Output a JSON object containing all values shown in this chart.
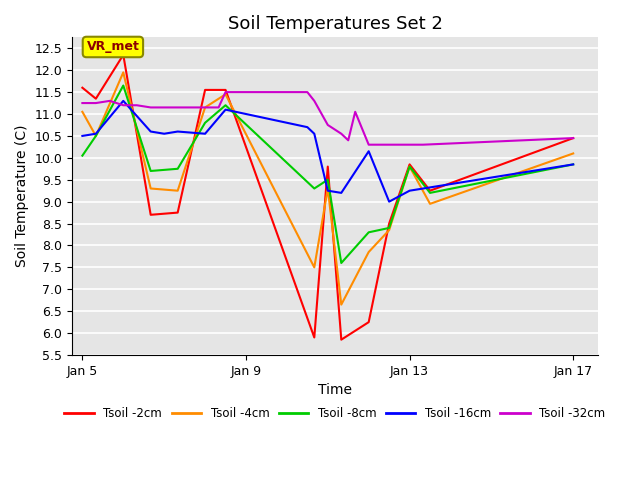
{
  "title": "Soil Temperatures Set 2",
  "xlabel": "Time",
  "ylabel": "Soil Temperature (C)",
  "ylim": [
    5.5,
    12.75
  ],
  "background_color": "#e5e5e5",
  "annotation_label": "VR_met",
  "annotation_box_color": "#ffff00",
  "annotation_text_color": "#8b0000",
  "series": {
    "Tsoil -2cm": {
      "color": "#ff0000",
      "x": [
        5.0,
        5.33,
        6.0,
        6.67,
        7.33,
        8.0,
        8.5,
        10.67,
        11.0,
        11.33,
        12.0,
        12.5,
        13.0,
        13.5,
        17.0
      ],
      "y": [
        11.6,
        11.35,
        12.35,
        8.7,
        8.75,
        11.55,
        11.55,
        5.9,
        9.8,
        5.85,
        6.25,
        8.5,
        9.85,
        9.25,
        10.45
      ]
    },
    "Tsoil -4cm": {
      "color": "#ff8c00",
      "x": [
        5.0,
        5.33,
        6.0,
        6.67,
        7.33,
        8.0,
        8.5,
        10.67,
        11.0,
        11.33,
        12.0,
        12.5,
        13.0,
        13.5,
        17.0
      ],
      "y": [
        11.05,
        10.5,
        11.95,
        9.3,
        9.25,
        11.15,
        11.45,
        7.5,
        9.3,
        6.65,
        7.85,
        8.35,
        9.8,
        8.95,
        10.1
      ]
    },
    "Tsoil -8cm": {
      "color": "#00cc00",
      "x": [
        5.0,
        5.33,
        6.0,
        6.67,
        7.33,
        8.0,
        8.5,
        10.67,
        11.0,
        11.33,
        12.0,
        12.5,
        13.0,
        13.5,
        17.0
      ],
      "y": [
        10.05,
        10.5,
        11.65,
        9.7,
        9.75,
        10.8,
        11.2,
        9.3,
        9.5,
        7.6,
        8.3,
        8.4,
        9.8,
        9.2,
        9.85
      ]
    },
    "Tsoil -16cm": {
      "color": "#0000ff",
      "x": [
        5.0,
        5.33,
        6.0,
        6.67,
        7.0,
        7.33,
        8.0,
        8.5,
        10.5,
        10.67,
        11.0,
        11.33,
        12.0,
        12.5,
        13.0,
        17.0
      ],
      "y": [
        10.5,
        10.55,
        11.3,
        10.6,
        10.55,
        10.6,
        10.55,
        11.1,
        10.7,
        10.55,
        9.25,
        9.2,
        10.15,
        9.0,
        9.25,
        9.85
      ]
    },
    "Tsoil -32cm": {
      "color": "#cc00cc",
      "x": [
        5.0,
        5.33,
        5.67,
        6.0,
        6.33,
        6.67,
        7.0,
        7.33,
        7.67,
        8.0,
        8.33,
        8.5,
        10.5,
        10.67,
        11.0,
        11.33,
        11.5,
        11.67,
        12.0,
        12.33,
        12.67,
        13.0,
        13.33,
        17.0
      ],
      "y": [
        11.25,
        11.25,
        11.3,
        11.2,
        11.2,
        11.15,
        11.15,
        11.15,
        11.15,
        11.15,
        11.15,
        11.5,
        11.5,
        11.3,
        10.75,
        10.55,
        10.4,
        11.05,
        10.3,
        10.3,
        10.3,
        10.3,
        10.3,
        10.45
      ]
    }
  },
  "xtick_positions": [
    5,
    9,
    13,
    17
  ],
  "xtick_labels": [
    "Jan 5",
    "Jan 9",
    "Jan 13",
    "Jan 17"
  ],
  "xlim": [
    4.75,
    17.6
  ]
}
